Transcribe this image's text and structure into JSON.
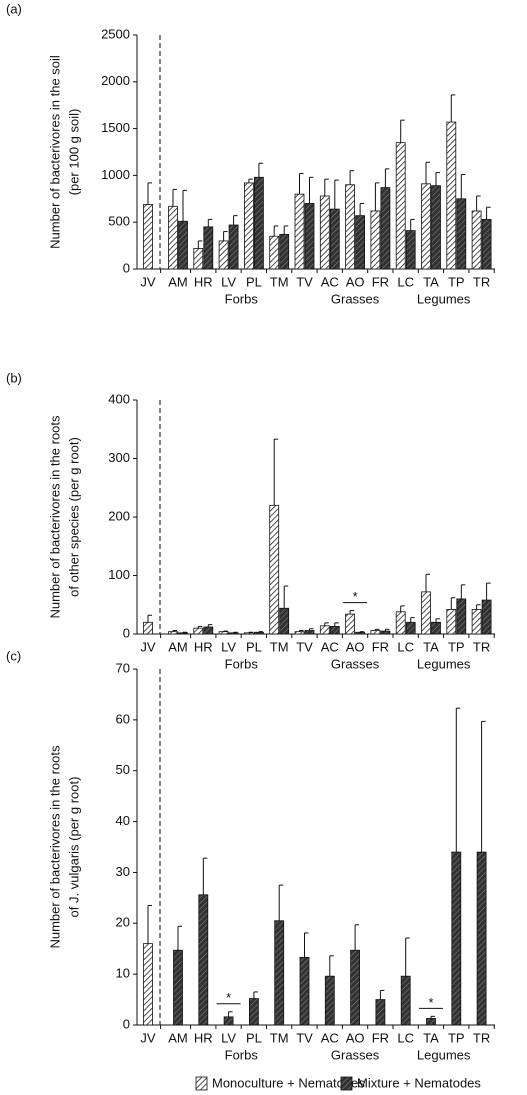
{
  "chart_data": [
    {
      "type": "bar",
      "panel_label": "(a)",
      "ylabel": [
        "Number of bacterivores in the soil",
        "(per 100 g soil)"
      ],
      "categories": [
        "JV",
        "AM",
        "HR",
        "LV",
        "PL",
        "TM",
        "TV",
        "AC",
        "AO",
        "FR",
        "LC",
        "TA",
        "TP",
        "TR"
      ],
      "groups": [
        {
          "label": "Forbs",
          "from": "AM",
          "to": "TV"
        },
        {
          "label": "Grasses",
          "from": "AC",
          "to": "FR"
        },
        {
          "label": "Legumes",
          "from": "LC",
          "to": "TR"
        }
      ],
      "series": [
        {
          "pattern": "light-hatch",
          "values": [
            690,
            670,
            220,
            300,
            920,
            350,
            800,
            780,
            900,
            620,
            1350,
            910,
            1570,
            620
          ],
          "errors": [
            230,
            180,
            80,
            100,
            40,
            110,
            220,
            180,
            150,
            300,
            240,
            230,
            290,
            160
          ]
        },
        {
          "pattern": "dark-hatch",
          "values": [
            null,
            510,
            450,
            470,
            980,
            370,
            700,
            640,
            570,
            870,
            410,
            890,
            750,
            530
          ],
          "errors": [
            null,
            330,
            80,
            100,
            150,
            90,
            280,
            310,
            130,
            200,
            120,
            140,
            260,
            130
          ]
        }
      ],
      "ylim": [
        0,
        2500
      ],
      "yticks": [
        0,
        500,
        1000,
        1500,
        2000,
        2500
      ],
      "annotations": []
    },
    {
      "type": "bar",
      "panel_label": "(b)",
      "ylabel": [
        "Number of bacterivores in the roots",
        "of other species (per g root)"
      ],
      "categories": [
        "JV",
        "AM",
        "HR",
        "LV",
        "PL",
        "TM",
        "TV",
        "AC",
        "AO",
        "FR",
        "LC",
        "TA",
        "TP",
        "TR"
      ],
      "groups": [
        {
          "label": "Forbs",
          "from": "AM",
          "to": "TV"
        },
        {
          "label": "Grasses",
          "from": "AC",
          "to": "FR"
        },
        {
          "label": "Legumes",
          "from": "LC",
          "to": "TR"
        }
      ],
      "series": [
        {
          "pattern": "light-hatch",
          "values": [
            20,
            4,
            10,
            4,
            2,
            220,
            4,
            14,
            34,
            6,
            38,
            72,
            42,
            42
          ],
          "errors": [
            12,
            2,
            3,
            1,
            1,
            113,
            2,
            5,
            6,
            2,
            10,
            30,
            20,
            8
          ]
        },
        {
          "pattern": "dark-hatch",
          "values": [
            null,
            2,
            12,
            2,
            3,
            44,
            6,
            13,
            3,
            5,
            20,
            20,
            60,
            58
          ],
          "errors": [
            null,
            1,
            4,
            1,
            1,
            38,
            3,
            6,
            1,
            3,
            8,
            6,
            24,
            29
          ]
        }
      ],
      "ylim": [
        0,
        400
      ],
      "yticks": [
        0,
        100,
        200,
        300,
        400
      ],
      "annotations": [
        {
          "label": "*",
          "x": "AO"
        }
      ]
    },
    {
      "type": "bar",
      "panel_label": "(c)",
      "ylabel": [
        "Number of bacterivores in the roots",
        "of J. vulgaris (per g root)"
      ],
      "categories": [
        "JV",
        "AM",
        "HR",
        "LV",
        "PL",
        "TM",
        "TV",
        "AC",
        "AO",
        "FR",
        "LC",
        "TA",
        "TP",
        "TR"
      ],
      "groups": [
        {
          "label": "Forbs",
          "from": "AM",
          "to": "TV"
        },
        {
          "label": "Grasses",
          "from": "AC",
          "to": "FR"
        },
        {
          "label": "Legumes",
          "from": "LC",
          "to": "TR"
        }
      ],
      "series": [
        {
          "name": "Monoculture + Nematodes",
          "pattern": "light-hatch",
          "values": [
            16,
            null,
            null,
            null,
            null,
            null,
            null,
            null,
            null,
            null,
            null,
            null,
            null,
            null
          ],
          "errors": [
            7.5,
            null,
            null,
            null,
            null,
            null,
            null,
            null,
            null,
            null,
            null,
            null,
            null,
            null
          ]
        },
        {
          "name": "Mixture + Nematodes",
          "pattern": "dark-hatch",
          "values": [
            null,
            14.7,
            25.6,
            1.6,
            5.2,
            20.5,
            13.3,
            9.6,
            14.7,
            5,
            9.6,
            1.3,
            34,
            34
          ],
          "errors": [
            null,
            4.7,
            7.2,
            1,
            1.3,
            7,
            4.8,
            4,
            5,
            1.8,
            7.5,
            0.4,
            28.3,
            25.7
          ]
        }
      ],
      "ylim": [
        0,
        70
      ],
      "yticks": [
        0,
        10,
        20,
        30,
        40,
        50,
        60,
        70
      ],
      "annotations": [
        {
          "label": "*",
          "x": "LV"
        },
        {
          "label": "*",
          "x": "TA"
        }
      ]
    }
  ]
}
